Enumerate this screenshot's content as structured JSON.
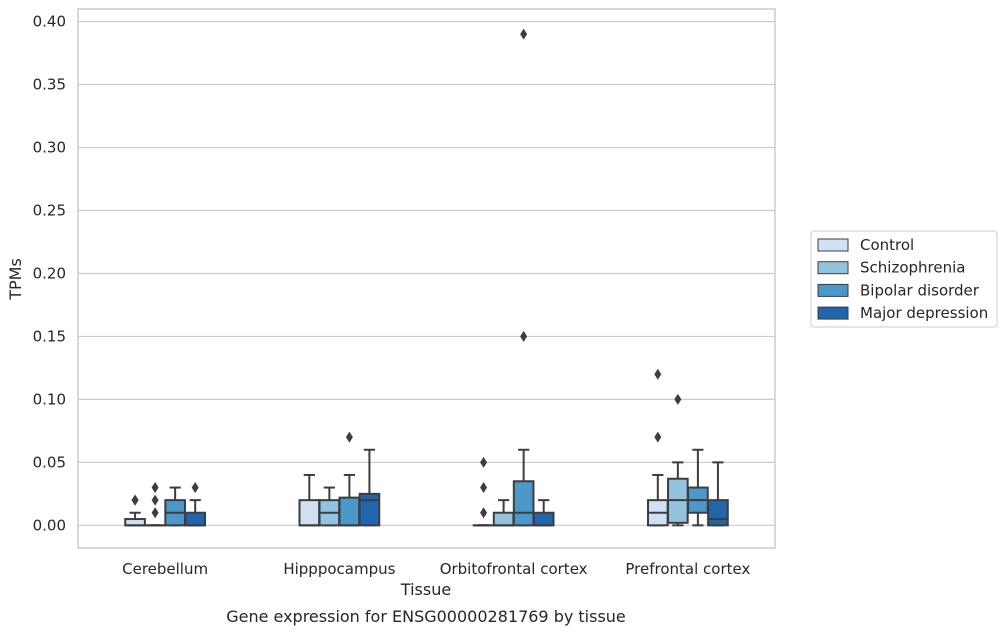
{
  "chart_data": {
    "type": "box",
    "xlabel": "Tissue",
    "ylabel": "TPMs",
    "caption": "Gene expression for ENSG00000281769 by tissue",
    "ylim": [
      -0.018,
      0.41
    ],
    "yticks": [
      0.0,
      0.05,
      0.1,
      0.15,
      0.2,
      0.25,
      0.3,
      0.35,
      0.4
    ],
    "ytick_labels": [
      "0.00",
      "0.05",
      "0.10",
      "0.15",
      "0.20",
      "0.25",
      "0.30",
      "0.35",
      "0.40"
    ],
    "grid": true,
    "legend_position": "right",
    "categories": [
      "Cerebellum",
      "Hipppocampus",
      "Orbitofrontal cortex",
      "Prefrontal cortex"
    ],
    "series": [
      {
        "name": "Control",
        "color": "#cfe1f2",
        "boxes": [
          {
            "q1": 0.0,
            "median": 0.0,
            "q3": 0.005,
            "whislo": 0.0,
            "whishi": 0.01,
            "fliers": [
              0.02,
              0.02
            ]
          },
          {
            "q1": 0.0,
            "median": 0.0,
            "q3": 0.02,
            "whislo": 0.0,
            "whishi": 0.04,
            "fliers": []
          },
          {
            "q1": 0.0,
            "median": 0.0,
            "q3": 0.0,
            "whislo": 0.0,
            "whishi": 0.0,
            "fliers": [
              0.01,
              0.03,
              0.05
            ]
          },
          {
            "q1": 0.0,
            "median": 0.01,
            "q3": 0.02,
            "whislo": 0.0,
            "whishi": 0.04,
            "fliers": [
              0.07,
              0.12
            ]
          }
        ]
      },
      {
        "name": "Schizophrenia",
        "color": "#93c3df",
        "boxes": [
          {
            "q1": 0.0,
            "median": 0.0,
            "q3": 0.0,
            "whislo": 0.0,
            "whishi": 0.0,
            "fliers": [
              0.01,
              0.02,
              0.03
            ]
          },
          {
            "q1": 0.0,
            "median": 0.01,
            "q3": 0.02,
            "whislo": 0.0,
            "whishi": 0.03,
            "fliers": []
          },
          {
            "q1": 0.0,
            "median": 0.0,
            "q3": 0.01,
            "whislo": 0.0,
            "whishi": 0.02,
            "fliers": []
          },
          {
            "q1": 0.002,
            "median": 0.02,
            "q3": 0.037,
            "whislo": 0.0,
            "whishi": 0.05,
            "fliers": [
              0.1
            ]
          }
        ]
      },
      {
        "name": "Bipolar disorder",
        "color": "#4b98c9",
        "boxes": [
          {
            "q1": 0.0,
            "median": 0.01,
            "q3": 0.02,
            "whislo": 0.0,
            "whishi": 0.03,
            "fliers": []
          },
          {
            "q1": 0.0,
            "median": 0.0,
            "q3": 0.022,
            "whislo": 0.0,
            "whishi": 0.04,
            "fliers": [
              0.07
            ]
          },
          {
            "q1": 0.0,
            "median": 0.01,
            "q3": 0.035,
            "whislo": 0.0,
            "whishi": 0.06,
            "fliers": [
              0.15,
              0.39
            ]
          },
          {
            "q1": 0.01,
            "median": 0.02,
            "q3": 0.03,
            "whislo": 0.0,
            "whishi": 0.06,
            "fliers": []
          }
        ]
      },
      {
        "name": "Major depression",
        "color": "#2166ac",
        "boxes": [
          {
            "q1": 0.0,
            "median": 0.0,
            "q3": 0.01,
            "whislo": 0.0,
            "whishi": 0.02,
            "fliers": [
              0.03
            ]
          },
          {
            "q1": 0.0,
            "median": 0.02,
            "q3": 0.025,
            "whislo": 0.0,
            "whishi": 0.06,
            "fliers": []
          },
          {
            "q1": 0.0,
            "median": 0.0,
            "q3": 0.01,
            "whislo": 0.0,
            "whishi": 0.02,
            "fliers": []
          },
          {
            "q1": 0.0,
            "median": 0.005,
            "q3": 0.02,
            "whislo": 0.0,
            "whishi": 0.05,
            "fliers": []
          }
        ]
      }
    ]
  }
}
